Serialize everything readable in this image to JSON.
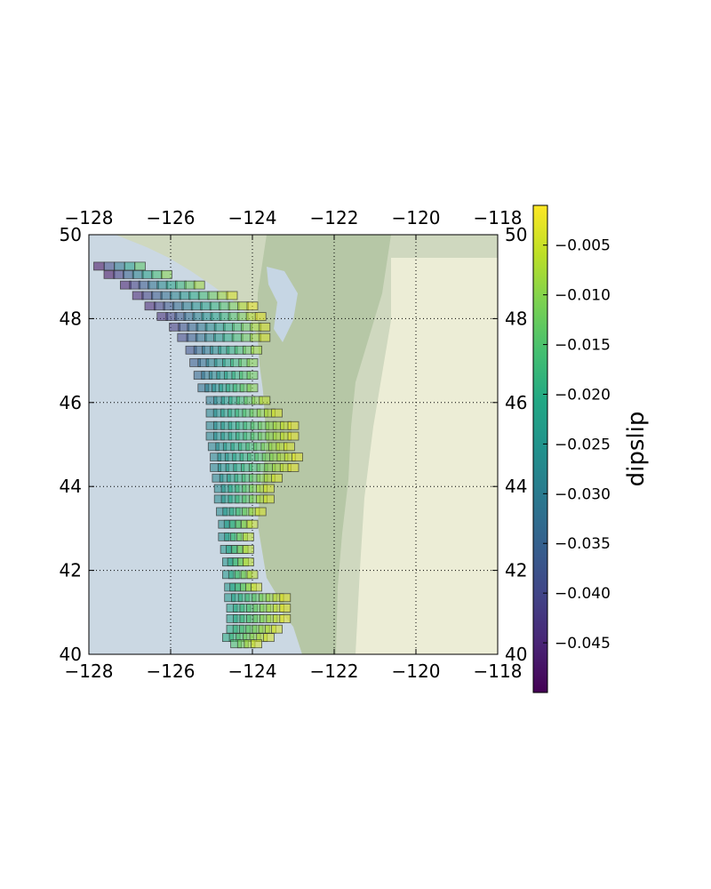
{
  "chart_data": {
    "type": "heatmap",
    "title": "",
    "xlabel": "",
    "ylabel": "",
    "xlim": [
      -128,
      -118
    ],
    "ylim": [
      40,
      50
    ],
    "xticks": [
      -128,
      -126,
      -124,
      -122,
      -120,
      -118
    ],
    "xtick_labels": [
      "−128",
      "−126",
      "−124",
      "−122",
      "−120",
      "−118"
    ],
    "yticks": [
      40,
      42,
      44,
      46,
      48,
      50
    ],
    "ytick_labels": [
      "40",
      "42",
      "44",
      "46",
      "48",
      "50"
    ],
    "grid": true,
    "basemap": "terrain",
    "colormap": "viridis",
    "colorbar": {
      "label": "dipslip",
      "range": [
        -0.05,
        -0.001
      ],
      "ticks": [
        -0.005,
        -0.01,
        -0.015,
        -0.02,
        -0.025,
        -0.03,
        -0.035,
        -0.04,
        -0.045
      ],
      "tick_labels": [
        "−0.005",
        "−0.010",
        "−0.015",
        "−0.020",
        "−0.025",
        "−0.030",
        "−0.035",
        "−0.040",
        "−0.045"
      ]
    },
    "series": [
      {
        "description_free": true,
        "rows": [
          {
            "lat": 49.25,
            "lon_start": -127.75,
            "lon_end": -126.75,
            "n": 5,
            "v_start": -0.048,
            "v_end": -0.014
          },
          {
            "lat": 49.05,
            "lon_start": -127.5,
            "lon_end": -126.1,
            "n": 7,
            "v_start": -0.048,
            "v_end": -0.01
          },
          {
            "lat": 48.8,
            "lon_start": -127.1,
            "lon_end": -125.3,
            "n": 9,
            "v_start": -0.046,
            "v_end": -0.008
          },
          {
            "lat": 48.55,
            "lon_start": -126.8,
            "lon_end": -124.5,
            "n": 11,
            "v_start": -0.045,
            "v_end": -0.004
          },
          {
            "lat": 48.3,
            "lon_start": -126.5,
            "lon_end": -124.0,
            "n": 12,
            "v_start": -0.045,
            "v_end": -0.003
          },
          {
            "lat": 48.05,
            "lon_start": -126.2,
            "lon_end": -123.8,
            "n": 12,
            "v_start": -0.044,
            "v_end": -0.003
          },
          {
            "lat": 47.8,
            "lon_start": -125.9,
            "lon_end": -123.7,
            "n": 11,
            "v_start": -0.042,
            "v_end": -0.004
          },
          {
            "lat": 47.55,
            "lon_start": -125.7,
            "lon_end": -123.7,
            "n": 10,
            "v_start": -0.04,
            "v_end": -0.004
          },
          {
            "lat": 47.25,
            "lon_start": -125.5,
            "lon_end": -123.9,
            "n": 9,
            "v_start": -0.038,
            "v_end": -0.008
          },
          {
            "lat": 46.95,
            "lon_start": -125.4,
            "lon_end": -124.0,
            "n": 8,
            "v_start": -0.036,
            "v_end": -0.01
          },
          {
            "lat": 46.65,
            "lon_start": -125.3,
            "lon_end": -124.0,
            "n": 8,
            "v_start": -0.034,
            "v_end": -0.012
          },
          {
            "lat": 46.35,
            "lon_start": -125.2,
            "lon_end": -124.0,
            "n": 8,
            "v_start": -0.032,
            "v_end": -0.01
          },
          {
            "lat": 46.05,
            "lon_start": -125.0,
            "lon_end": -123.7,
            "n": 8,
            "v_start": -0.03,
            "v_end": -0.006
          },
          {
            "lat": 45.75,
            "lon_start": -125.0,
            "lon_end": -123.4,
            "n": 10,
            "v_start": -0.028,
            "v_end": -0.004
          },
          {
            "lat": 45.45,
            "lon_start": -125.0,
            "lon_end": -123.0,
            "n": 12,
            "v_start": -0.028,
            "v_end": -0.003
          },
          {
            "lat": 45.2,
            "lon_start": -125.0,
            "lon_end": -123.0,
            "n": 12,
            "v_start": -0.028,
            "v_end": -0.003
          },
          {
            "lat": 44.95,
            "lon_start": -124.95,
            "lon_end": -123.1,
            "n": 11,
            "v_start": -0.028,
            "v_end": -0.004
          },
          {
            "lat": 44.7,
            "lon_start": -124.9,
            "lon_end": -122.9,
            "n": 12,
            "v_start": -0.028,
            "v_end": -0.003
          },
          {
            "lat": 44.45,
            "lon_start": -124.9,
            "lon_end": -123.0,
            "n": 11,
            "v_start": -0.028,
            "v_end": -0.003
          },
          {
            "lat": 44.2,
            "lon_start": -124.85,
            "lon_end": -123.4,
            "n": 9,
            "v_start": -0.028,
            "v_end": -0.004
          },
          {
            "lat": 43.95,
            "lon_start": -124.8,
            "lon_end": -123.6,
            "n": 8,
            "v_start": -0.027,
            "v_end": -0.004
          },
          {
            "lat": 43.7,
            "lon_start": -124.8,
            "lon_end": -123.6,
            "n": 8,
            "v_start": -0.027,
            "v_end": -0.004
          },
          {
            "lat": 43.4,
            "lon_start": -124.75,
            "lon_end": -123.8,
            "n": 7,
            "v_start": -0.027,
            "v_end": -0.004
          },
          {
            "lat": 43.1,
            "lon_start": -124.7,
            "lon_end": -124.0,
            "n": 6,
            "v_start": -0.026,
            "v_end": -0.005
          },
          {
            "lat": 42.8,
            "lon_start": -124.7,
            "lon_end": -124.1,
            "n": 5,
            "v_start": -0.026,
            "v_end": -0.006
          },
          {
            "lat": 42.5,
            "lon_start": -124.65,
            "lon_end": -124.1,
            "n": 5,
            "v_start": -0.025,
            "v_end": -0.006
          },
          {
            "lat": 42.2,
            "lon_start": -124.6,
            "lon_end": -124.1,
            "n": 5,
            "v_start": -0.025,
            "v_end": -0.006
          },
          {
            "lat": 41.9,
            "lon_start": -124.6,
            "lon_end": -124.0,
            "n": 5,
            "v_start": -0.024,
            "v_end": -0.006
          },
          {
            "lat": 41.6,
            "lon_start": -124.55,
            "lon_end": -123.9,
            "n": 6,
            "v_start": -0.024,
            "v_end": -0.004
          },
          {
            "lat": 41.35,
            "lon_start": -124.55,
            "lon_end": -123.2,
            "n": 9,
            "v_start": -0.024,
            "v_end": -0.003
          },
          {
            "lat": 41.1,
            "lon_start": -124.5,
            "lon_end": -123.2,
            "n": 9,
            "v_start": -0.022,
            "v_end": -0.003
          },
          {
            "lat": 40.85,
            "lon_start": -124.5,
            "lon_end": -123.2,
            "n": 9,
            "v_start": -0.022,
            "v_end": -0.003
          },
          {
            "lat": 40.6,
            "lon_start": -124.5,
            "lon_end": -123.4,
            "n": 8,
            "v_start": -0.02,
            "v_end": -0.004
          },
          {
            "lat": 40.4,
            "lon_start": -124.6,
            "lon_end": -123.6,
            "n": 7,
            "v_start": -0.02,
            "v_end": -0.004
          },
          {
            "lat": 40.25,
            "lon_start": -124.4,
            "lon_end": -123.9,
            "n": 4,
            "v_start": -0.015,
            "v_end": -0.004
          }
        ]
      }
    ]
  }
}
